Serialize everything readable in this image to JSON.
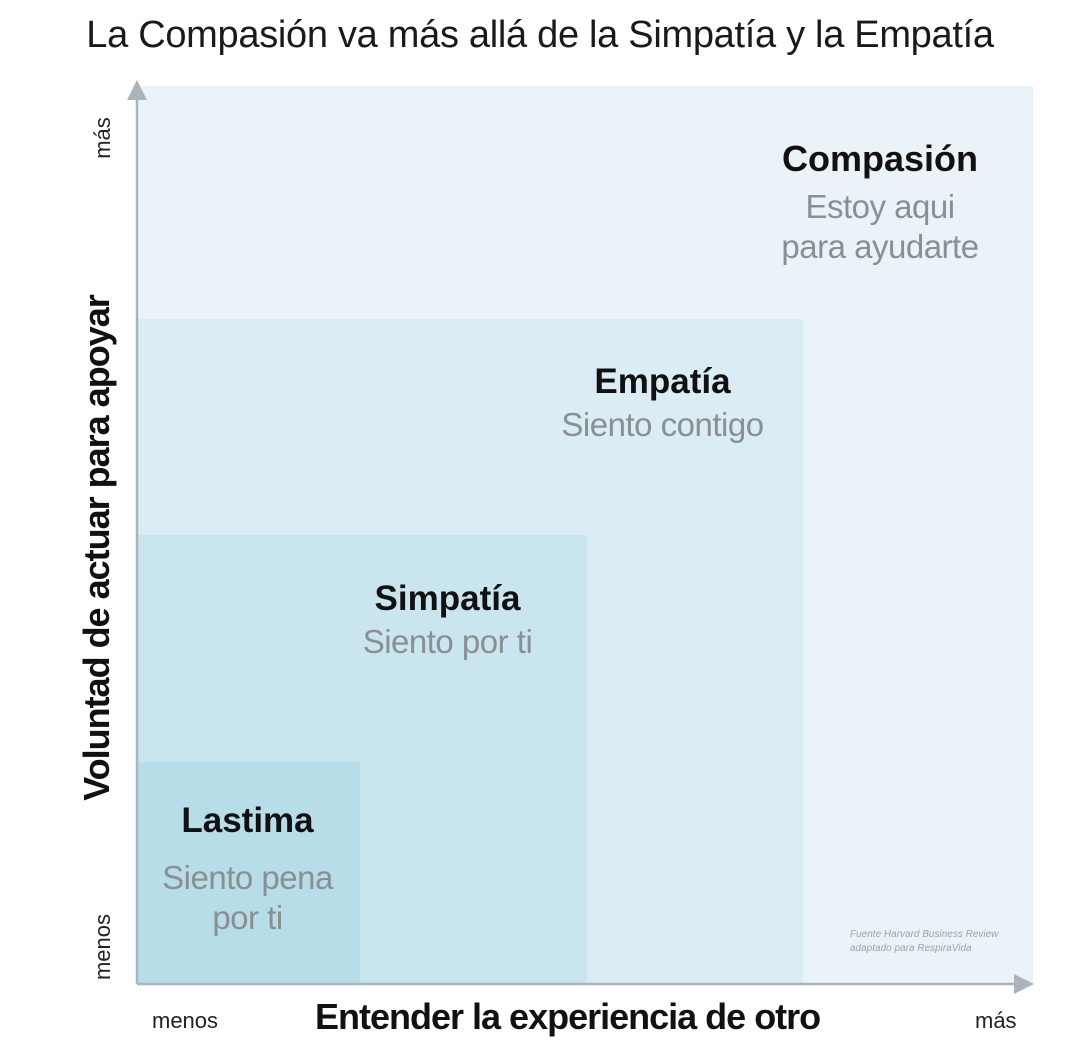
{
  "title": "La Compasión va más allá de la Simpatía y la Empatía",
  "axes": {
    "x_label": "Entender la experiencia de otro",
    "y_label": "Voluntad de actuar para apoyar",
    "x_min_label": "menos",
    "x_max_label": "más",
    "y_min_label": "menos",
    "y_max_label": "más"
  },
  "levels": {
    "compasion": {
      "heading": "Compasión",
      "line1": "Estoy aqui",
      "line2": "para ayudarte",
      "color": "#eaf4f8"
    },
    "empatia": {
      "heading": "Empatía",
      "line1": "Siento contigo",
      "color": "#daedf4"
    },
    "simpatia": {
      "heading": "Simpatía",
      "line1": "Siento por ti",
      "color": "#c9e6ee"
    },
    "lastima": {
      "heading": "Lastima",
      "line1": "Siento pena",
      "line2": "por ti",
      "color": "#b7dde8"
    }
  },
  "source": {
    "line1": "Fuente Harvard Business Review",
    "line2": "adaptado para RespiraVida"
  },
  "colors": {
    "axis": "#aab4bb",
    "heading": "#111111",
    "subtext": "#8a8f93"
  }
}
